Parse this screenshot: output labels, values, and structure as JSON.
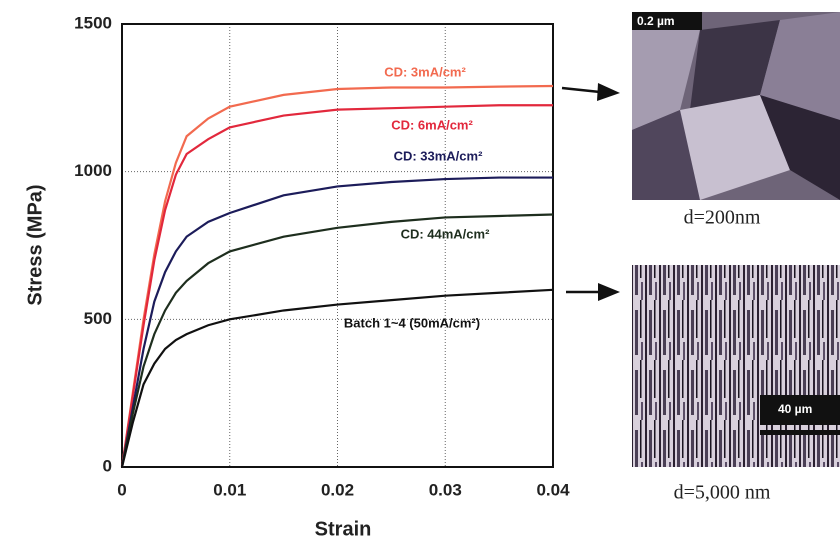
{
  "chart_data": {
    "type": "line",
    "x_label": "Strain",
    "y_label": "Stress (MPa)",
    "x": [
      0,
      0.001,
      0.002,
      0.003,
      0.004,
      0.005,
      0.006,
      0.008,
      0.01,
      0.015,
      0.02,
      0.025,
      0.03,
      0.035,
      0.04
    ],
    "series": [
      {
        "name": "CD: 3mA/cm²",
        "color": "#f26a4f",
        "values": [
          0,
          250,
          500,
          720,
          900,
          1030,
          1120,
          1180,
          1220,
          1260,
          1280,
          1285,
          1285,
          1288,
          1290
        ]
      },
      {
        "name": "CD: 6mA/cm²",
        "color": "#e2283c",
        "values": [
          0,
          240,
          480,
          700,
          870,
          990,
          1060,
          1110,
          1150,
          1190,
          1210,
          1215,
          1220,
          1225,
          1225
        ]
      },
      {
        "name": "CD: 33mA/cm²",
        "color": "#1c1c5a",
        "values": [
          0,
          200,
          400,
          560,
          660,
          730,
          780,
          830,
          860,
          920,
          950,
          965,
          975,
          980,
          980
        ]
      },
      {
        "name": "CD: 44mA/cm²",
        "color": "#1e2e1e",
        "values": [
          0,
          180,
          340,
          450,
          530,
          590,
          630,
          690,
          730,
          780,
          810,
          830,
          845,
          850,
          855
        ]
      },
      {
        "name": "Batch 1~4 (50mA/cm²)",
        "color": "#111111",
        "values": [
          0,
          150,
          280,
          350,
          400,
          430,
          450,
          480,
          500,
          530,
          550,
          565,
          580,
          590,
          600
        ]
      }
    ],
    "xlim": [
      0,
      0.04
    ],
    "xticks": [
      0,
      0.01,
      0.02,
      0.03,
      0.04
    ],
    "ylim": [
      0,
      1500
    ],
    "yticks": [
      0,
      500,
      1000,
      1500
    ],
    "grid": true
  },
  "micrographs": [
    {
      "scale_bar": "0.2 µm",
      "caption": "d=200nm"
    },
    {
      "scale_bar": "40 µm",
      "caption": "d=5,000 nm"
    }
  ]
}
